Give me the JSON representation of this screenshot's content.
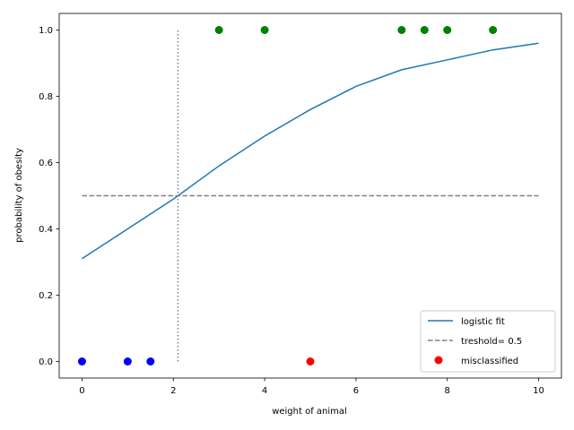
{
  "chart_data": {
    "type": "scatter",
    "xlabel": "weight of animal",
    "ylabel": "probability of obesity",
    "xlim": [
      -0.5,
      10.5
    ],
    "ylim": [
      -0.05,
      1.05
    ],
    "x_ticks": [
      0,
      2,
      4,
      6,
      8,
      10
    ],
    "y_ticks": [
      0.0,
      0.2,
      0.4,
      0.6,
      0.8,
      1.0
    ],
    "x_tick_labels": [
      "0",
      "2",
      "4",
      "6",
      "8",
      "10"
    ],
    "y_tick_labels": [
      "0.0",
      "0.2",
      "0.4",
      "0.6",
      "0.8",
      "1.0"
    ],
    "grid": false,
    "legend_position": "bottom-right",
    "series": [
      {
        "name": "logistic fit",
        "kind": "line",
        "color": "#1f77b4",
        "x": [
          0,
          1,
          2,
          3,
          4,
          5,
          6,
          7,
          8,
          9,
          10
        ],
        "y": [
          0.31,
          0.4,
          0.49,
          0.59,
          0.68,
          0.76,
          0.83,
          0.88,
          0.91,
          0.94,
          0.96
        ]
      },
      {
        "name": "treshold= 0.5",
        "kind": "hline",
        "color": "#808080",
        "y": 0.5,
        "x": [
          0,
          10
        ]
      },
      {
        "kind": "vline",
        "color": "#808080",
        "x": 2.1,
        "y": [
          0,
          1
        ]
      },
      {
        "kind": "points",
        "color": "#0000ff",
        "x": [
          0,
          1,
          1.5
        ],
        "y": [
          0,
          0,
          0
        ]
      },
      {
        "kind": "points",
        "color": "#008000",
        "x": [
          3,
          4,
          7,
          7.5,
          8,
          9
        ],
        "y": [
          1,
          1,
          1,
          1,
          1,
          1
        ]
      },
      {
        "name": "misclassified",
        "kind": "points",
        "color": "#ff0000",
        "x": [
          5
        ],
        "y": [
          0
        ]
      }
    ],
    "legend": [
      {
        "label": "logistic fit",
        "marker": "line"
      },
      {
        "label": "treshold= 0.5",
        "marker": "dashed"
      },
      {
        "label": "misclassified",
        "marker": "dot"
      }
    ]
  }
}
